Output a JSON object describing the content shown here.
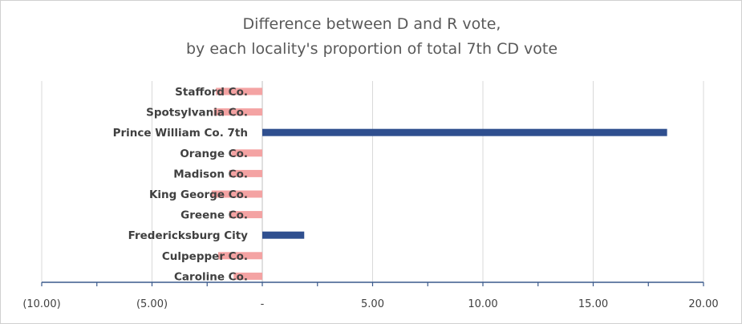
{
  "chart_data": {
    "type": "bar",
    "orientation": "horizontal",
    "title_lines": [
      "Difference between D and R vote,",
      "by each locality's proportion of total 7th CD vote"
    ],
    "categories": [
      "Stafford Co.",
      "Spotsylvania Co.",
      "Prince William Co. 7th",
      "Orange Co.",
      "Madison Co.",
      "King George Co.",
      "Greene Co.",
      "Fredericksburg City",
      "Culpepper Co.",
      "Caroline Co."
    ],
    "values": [
      -2.1,
      -2.2,
      18.35,
      -1.4,
      -1.5,
      -2.3,
      -1.5,
      1.9,
      -2.0,
      -1.3
    ],
    "colors": {
      "positive": "#2f4f8f",
      "negative": "#f4a3a3",
      "grid": "#d9d9d9",
      "axis": "#3a5a8c"
    },
    "xlim": [
      -10,
      20
    ],
    "xticks": [
      -10,
      -5,
      0,
      5,
      10,
      15,
      20
    ],
    "xtick_labels": [
      "(10.00)",
      "(5.00)",
      "-",
      "5.00",
      "10.00",
      "15.00",
      "20.00"
    ],
    "grid": true,
    "legend": "none"
  }
}
